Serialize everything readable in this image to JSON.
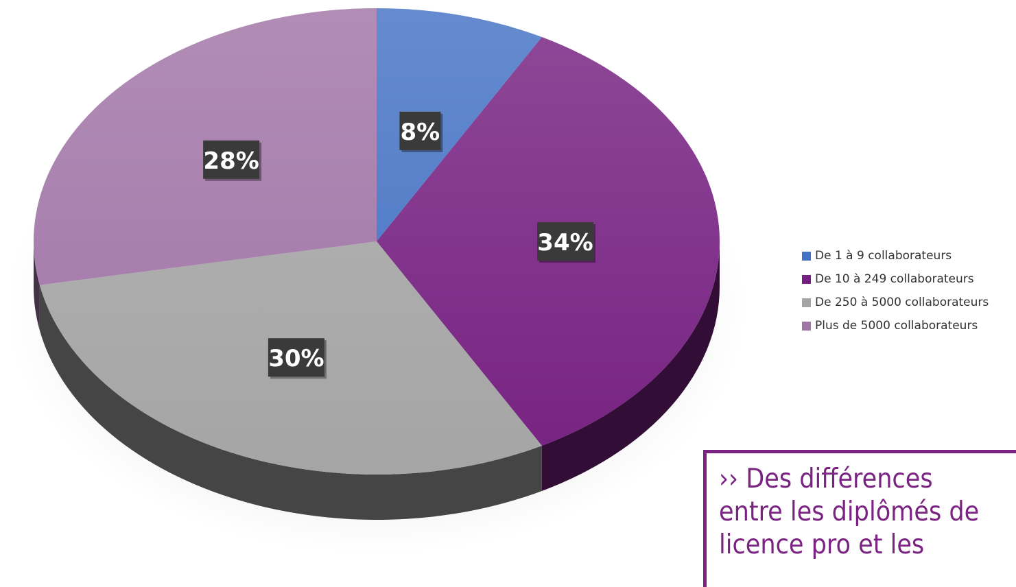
{
  "chart_data": {
    "type": "pie",
    "title": "",
    "slices": [
      {
        "label": "De 1 à 9 collaborateurs",
        "value": 8,
        "data_label": "8%",
        "color": "#4472c4"
      },
      {
        "label": "De 10 à 249 collaborateurs",
        "value": 34,
        "data_label": "34%",
        "color": "#762181"
      },
      {
        "label": "De 250 à 5000  collaborateurs",
        "value": 30,
        "data_label": "30%",
        "color": "#a5a5a5"
      },
      {
        "label": "Plus de 5000 collaborateurs",
        "value": 28,
        "data_label": "28%",
        "color": "#a074a6"
      }
    ],
    "legend_position": "right",
    "style": "3d-exploded-pie",
    "data_label_background": "#3a3a3a",
    "data_label_color": "#ffffff"
  },
  "callout": {
    "text": "›› Des différences\nentre les diplômés de\nlicence pro et les"
  }
}
